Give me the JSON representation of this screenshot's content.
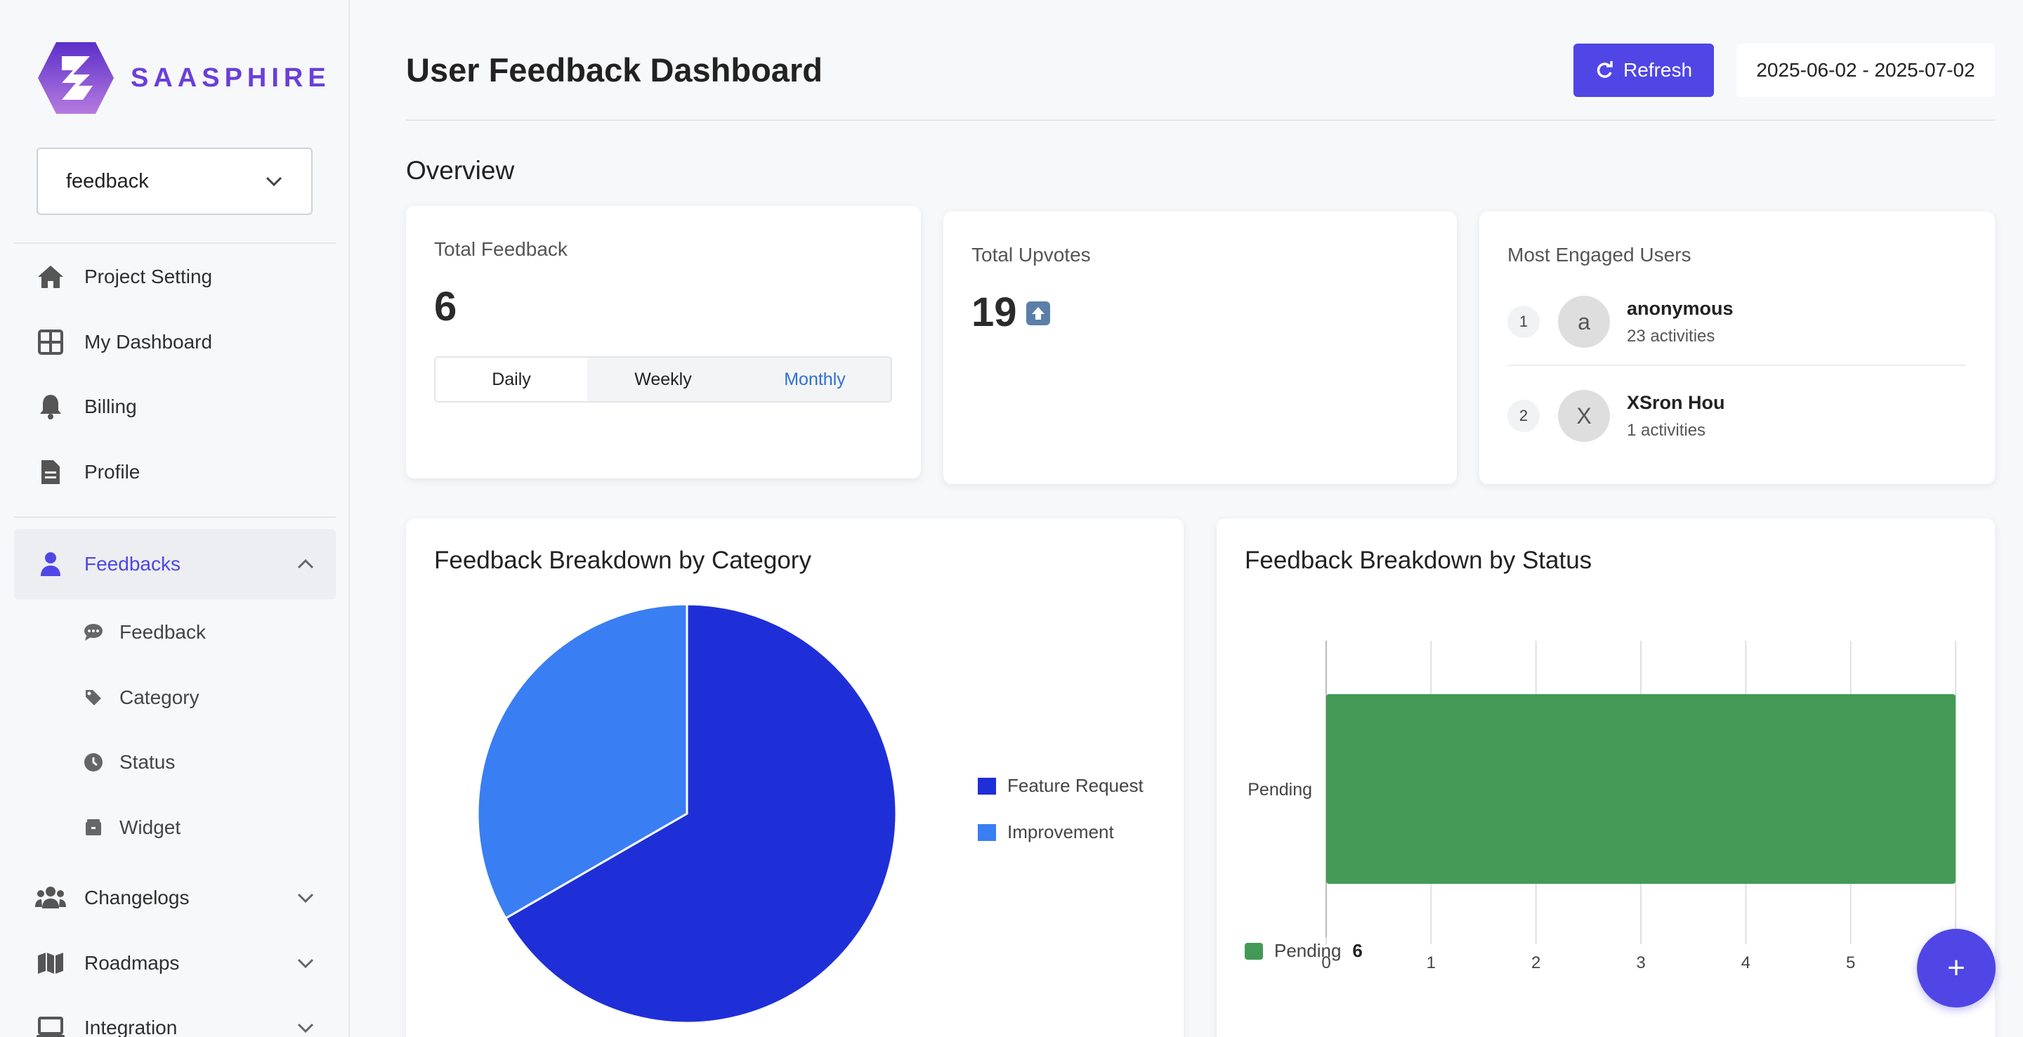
{
  "brand": {
    "name": "SAASPHIRE"
  },
  "project_select": {
    "value": "feedback"
  },
  "nav": {
    "project_setting": "Project Setting",
    "my_dashboard": "My Dashboard",
    "billing": "Billing",
    "profile": "Profile",
    "feedbacks": "Feedbacks",
    "changelogs": "Changelogs",
    "roadmaps": "Roadmaps",
    "integration": "Integration"
  },
  "sub_nav": {
    "feedback": "Feedback",
    "category": "Category",
    "status": "Status",
    "widget": "Widget"
  },
  "header": {
    "title": "User Feedback Dashboard",
    "refresh_label": "Refresh",
    "date_range": "2025-06-02 - 2025-07-02"
  },
  "overview": {
    "title": "Overview"
  },
  "total_feedback": {
    "label": "Total Feedback",
    "value": "6",
    "tabs": [
      "Daily",
      "Weekly",
      "Monthly"
    ],
    "selected_tab": "Monthly"
  },
  "total_upvotes": {
    "label": "Total Upvotes",
    "value": "19"
  },
  "engaged_users": {
    "label": "Most Engaged Users",
    "users": [
      {
        "rank": "1",
        "initial": "a",
        "name": "anonymous",
        "activities": "23 activities"
      },
      {
        "rank": "2",
        "initial": "X",
        "name": "XSron Hou",
        "activities": "1 activities"
      }
    ]
  },
  "chart_data": [
    {
      "type": "pie",
      "title": "Feedback Breakdown by Category",
      "categories": [
        "Feature Request",
        "Improvement"
      ],
      "values": [
        4,
        2
      ],
      "colors": [
        "#1f2fd8",
        "#3a7ef3"
      ],
      "legend": "right"
    },
    {
      "type": "bar",
      "orientation": "horizontal",
      "title": "Feedback Breakdown by Status",
      "categories": [
        "Pending"
      ],
      "values": [
        6
      ],
      "colors": [
        "#439a56"
      ],
      "xlim": [
        0,
        6
      ],
      "xticks": [
        "0",
        "1",
        "2",
        "3",
        "4",
        "5",
        "6"
      ],
      "grid": true,
      "legend": "bottom-left",
      "legend_entries": [
        {
          "name": "Pending",
          "value": "6"
        }
      ]
    }
  ],
  "fab": {
    "label": "+"
  }
}
